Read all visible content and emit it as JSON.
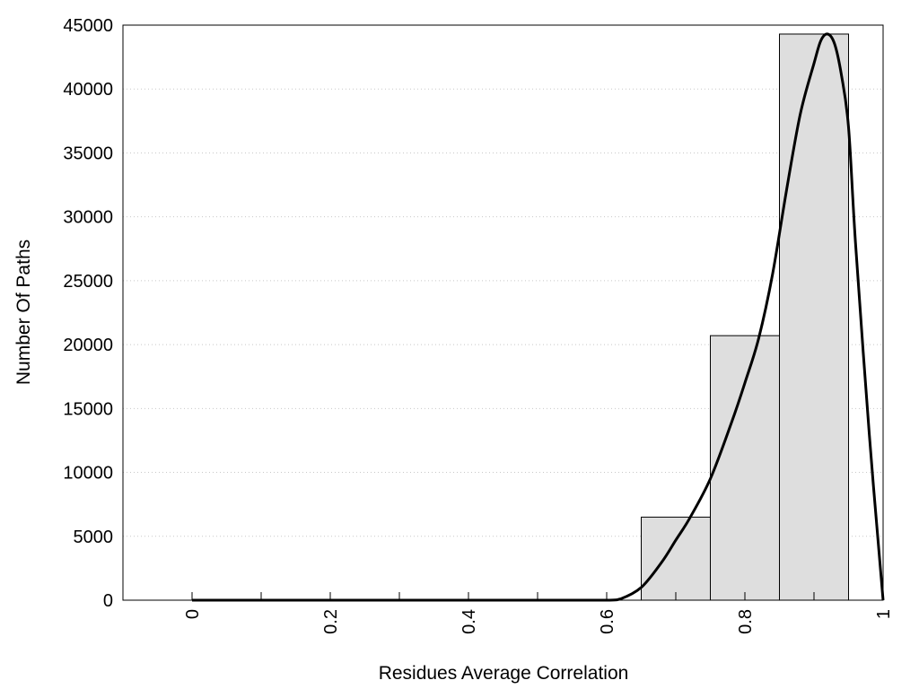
{
  "chart_data": {
    "type": "bar",
    "title": "",
    "xlabel": "Residues Average Correlation",
    "ylabel": "Number Of Paths",
    "xlim": [
      -0.1,
      1.0
    ],
    "ylim": [
      0,
      45000
    ],
    "x_ticks": [
      "0",
      "0.2",
      "0.4",
      "0.6",
      "0.8",
      "1"
    ],
    "y_ticks": [
      "0",
      "5000",
      "10000",
      "15000",
      "20000",
      "25000",
      "30000",
      "35000",
      "40000",
      "45000"
    ],
    "bin_width": 0.1,
    "bins": [
      {
        "x": 0.0,
        "value": 0
      },
      {
        "x": 0.1,
        "value": 0
      },
      {
        "x": 0.2,
        "value": 0
      },
      {
        "x": 0.3,
        "value": 0
      },
      {
        "x": 0.4,
        "value": 0
      },
      {
        "x": 0.5,
        "value": 0
      },
      {
        "x": 0.6,
        "value": 0
      },
      {
        "x": 0.7,
        "value": 6500
      },
      {
        "x": 0.8,
        "value": 20700
      },
      {
        "x": 0.9,
        "value": 44300
      }
    ],
    "fit_curve": [
      [
        0.0,
        0
      ],
      [
        0.1,
        0
      ],
      [
        0.2,
        0
      ],
      [
        0.3,
        0
      ],
      [
        0.4,
        0
      ],
      [
        0.5,
        0
      ],
      [
        0.6,
        0
      ],
      [
        0.62,
        100
      ],
      [
        0.65,
        1000
      ],
      [
        0.68,
        3000
      ],
      [
        0.7,
        4700
      ],
      [
        0.72,
        6400
      ],
      [
        0.75,
        9500
      ],
      [
        0.78,
        13800
      ],
      [
        0.8,
        17000
      ],
      [
        0.82,
        20500
      ],
      [
        0.84,
        25500
      ],
      [
        0.86,
        32000
      ],
      [
        0.88,
        38000
      ],
      [
        0.9,
        42000
      ],
      [
        0.91,
        43800
      ],
      [
        0.92,
        44300
      ],
      [
        0.93,
        43500
      ],
      [
        0.94,
        41000
      ],
      [
        0.95,
        37000
      ],
      [
        0.96,
        28000
      ],
      [
        0.98,
        13000
      ],
      [
        1.0,
        0
      ]
    ],
    "grid": "horizontal-dotted",
    "bar_color": "#dedede",
    "line_color": "#000000"
  }
}
